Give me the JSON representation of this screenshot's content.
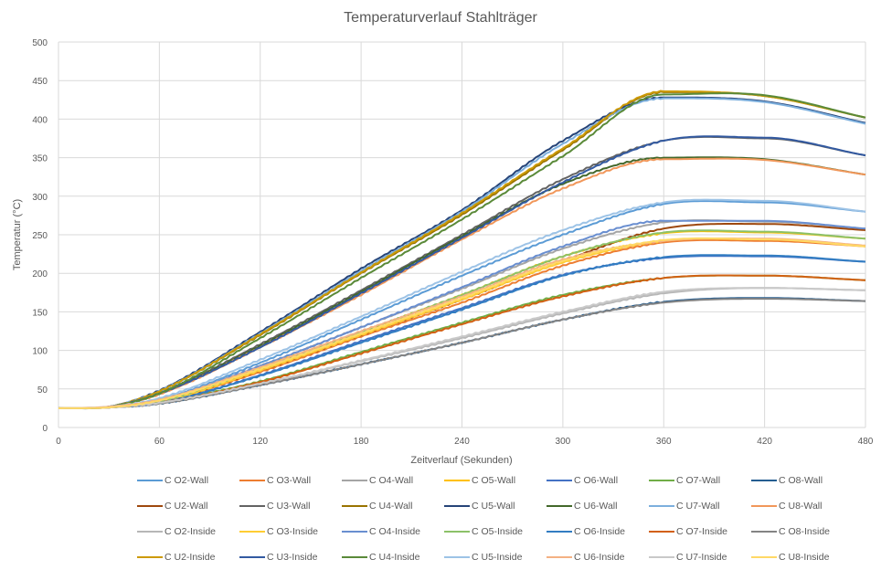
{
  "chart_data": {
    "type": "line",
    "title": "Temperaturverlauf Stahlträger",
    "xlabel": "Zeitverlauf (Sekunden)",
    "ylabel": "Temperatur  (°C)",
    "xlim": [
      0,
      480
    ],
    "ylim": [
      0,
      500
    ],
    "xticks": [
      0,
      60,
      120,
      180,
      240,
      300,
      360,
      420,
      480
    ],
    "yticks": [
      0,
      50,
      100,
      150,
      200,
      250,
      300,
      350,
      400,
      450,
      500
    ],
    "xtick_labels": [
      "0",
      "60",
      "120",
      "180",
      "240",
      "300",
      "360",
      "420",
      "480"
    ],
    "ytick_labels": [
      "0",
      "50",
      "100",
      "150",
      "200",
      "250",
      "300",
      "350",
      "400",
      "450",
      "500"
    ],
    "grid": true,
    "legend_position": "bottom",
    "x_sample": [
      0,
      30,
      60,
      120,
      180,
      240,
      300,
      360,
      420,
      480
    ],
    "series": [
      {
        "name": "C O2-Wall",
        "color": "#5B9BD5",
        "values": [
          25,
          26,
          36,
          84,
          140,
          197,
          250,
          290,
          292,
          280
        ]
      },
      {
        "name": "C O3-Wall",
        "color": "#ED7D31",
        "values": [
          25,
          26,
          33,
          72,
          118,
          162,
          210,
          240,
          242,
          235
        ]
      },
      {
        "name": "C O4-Wall",
        "color": "#A5A5A5",
        "values": [
          25,
          26,
          35,
          80,
          130,
          180,
          232,
          266,
          267,
          258
        ]
      },
      {
        "name": "C O5-Wall",
        "color": "#FFC000",
        "values": [
          25,
          26,
          34,
          78,
          124,
          172,
          222,
          252,
          253,
          245
        ]
      },
      {
        "name": "C O6-Wall",
        "color": "#4472C4",
        "values": [
          25,
          26,
          32,
          68,
          112,
          155,
          198,
          220,
          222,
          215
        ]
      },
      {
        "name": "C O7-Wall",
        "color": "#70AD47",
        "values": [
          25,
          26,
          33,
          60,
          98,
          136,
          172,
          194,
          197,
          191
        ]
      },
      {
        "name": "C O8-Wall",
        "color": "#255E91",
        "values": [
          25,
          26,
          31,
          55,
          82,
          110,
          140,
          163,
          168,
          164
        ]
      },
      {
        "name": "C U2-Wall",
        "color": "#9E480E",
        "values": [
          25,
          26,
          33,
          74,
          120,
          166,
          216,
          258,
          264,
          256
        ]
      },
      {
        "name": "C U3-Wall",
        "color": "#636363",
        "values": [
          25,
          27,
          45,
          108,
          178,
          250,
          322,
          372,
          375,
          353
        ]
      },
      {
        "name": "C U4-Wall",
        "color": "#997300",
        "values": [
          25,
          27,
          47,
          120,
          200,
          276,
          360,
          435,
          430,
          402
        ]
      },
      {
        "name": "C U5-Wall",
        "color": "#264478",
        "values": [
          25,
          27,
          48,
          124,
          206,
          282,
          372,
          428,
          423,
          395
        ]
      },
      {
        "name": "C U6-Wall",
        "color": "#43682B",
        "values": [
          25,
          27,
          44,
          106,
          176,
          248,
          316,
          350,
          348,
          328
        ]
      },
      {
        "name": "C U7-Wall",
        "color": "#7CAFDD",
        "values": [
          25,
          27,
          47,
          122,
          203,
          280,
          368,
          427,
          422,
          394
        ]
      },
      {
        "name": "C U8-Wall",
        "color": "#F1975A",
        "values": [
          25,
          27,
          43,
          104,
          172,
          244,
          310,
          348,
          347,
          328
        ]
      },
      {
        "name": "C O2-Inside",
        "color": "#B7B7B7",
        "values": [
          25,
          26,
          32,
          57,
          86,
          116,
          148,
          174,
          181,
          178
        ]
      },
      {
        "name": "C O3-Inside",
        "color": "#FFCD33",
        "values": [
          25,
          26,
          33,
          74,
          120,
          166,
          214,
          242,
          244,
          235
        ]
      },
      {
        "name": "C O4-Inside",
        "color": "#698ED0",
        "values": [
          25,
          26,
          35,
          80,
          130,
          182,
          235,
          268,
          268,
          258
        ]
      },
      {
        "name": "C O5-Inside",
        "color": "#8CC168",
        "values": [
          25,
          26,
          34,
          77,
          124,
          172,
          222,
          253,
          254,
          245
        ]
      },
      {
        "name": "C O6-Inside",
        "color": "#327DC2",
        "values": [
          25,
          26,
          32,
          67,
          110,
          153,
          197,
          221,
          223,
          215
        ]
      },
      {
        "name": "C O7-Inside",
        "color": "#D26012",
        "values": [
          25,
          26,
          32,
          59,
          96,
          134,
          170,
          194,
          197,
          191
        ]
      },
      {
        "name": "C O8-Inside",
        "color": "#848484",
        "values": [
          25,
          26,
          31,
          55,
          82,
          110,
          140,
          162,
          167,
          164
        ]
      },
      {
        "name": "C U2-Inside",
        "color": "#CC9A06",
        "values": [
          25,
          27,
          47,
          121,
          201,
          278,
          362,
          436,
          430,
          402
        ]
      },
      {
        "name": "C U3-Inside",
        "color": "#335AA1",
        "values": [
          25,
          27,
          44,
          104,
          174,
          246,
          318,
          372,
          376,
          353
        ]
      },
      {
        "name": "C U4-Inside",
        "color": "#5A8A39",
        "values": [
          25,
          27,
          44,
          116,
          194,
          270,
          352,
          432,
          431,
          402
        ]
      },
      {
        "name": "C U5-Inside",
        "color": "#9DC3E6",
        "values": [
          25,
          27,
          38,
          88,
          144,
          202,
          256,
          292,
          294,
          280
        ]
      },
      {
        "name": "C U6-Inside",
        "color": "#F4B183",
        "values": [
          25,
          27,
          36,
          78,
          125,
          170,
          218,
          242,
          245,
          236
        ]
      },
      {
        "name": "C U7-Inside",
        "color": "#C9C9C9",
        "values": [
          25,
          26,
          32,
          57,
          87,
          118,
          150,
          176,
          181,
          178
        ]
      },
      {
        "name": "C U8-Inside",
        "color": "#FFD966",
        "values": [
          25,
          26,
          35,
          76,
          122,
          168,
          216,
          243,
          244,
          235
        ]
      }
    ]
  }
}
